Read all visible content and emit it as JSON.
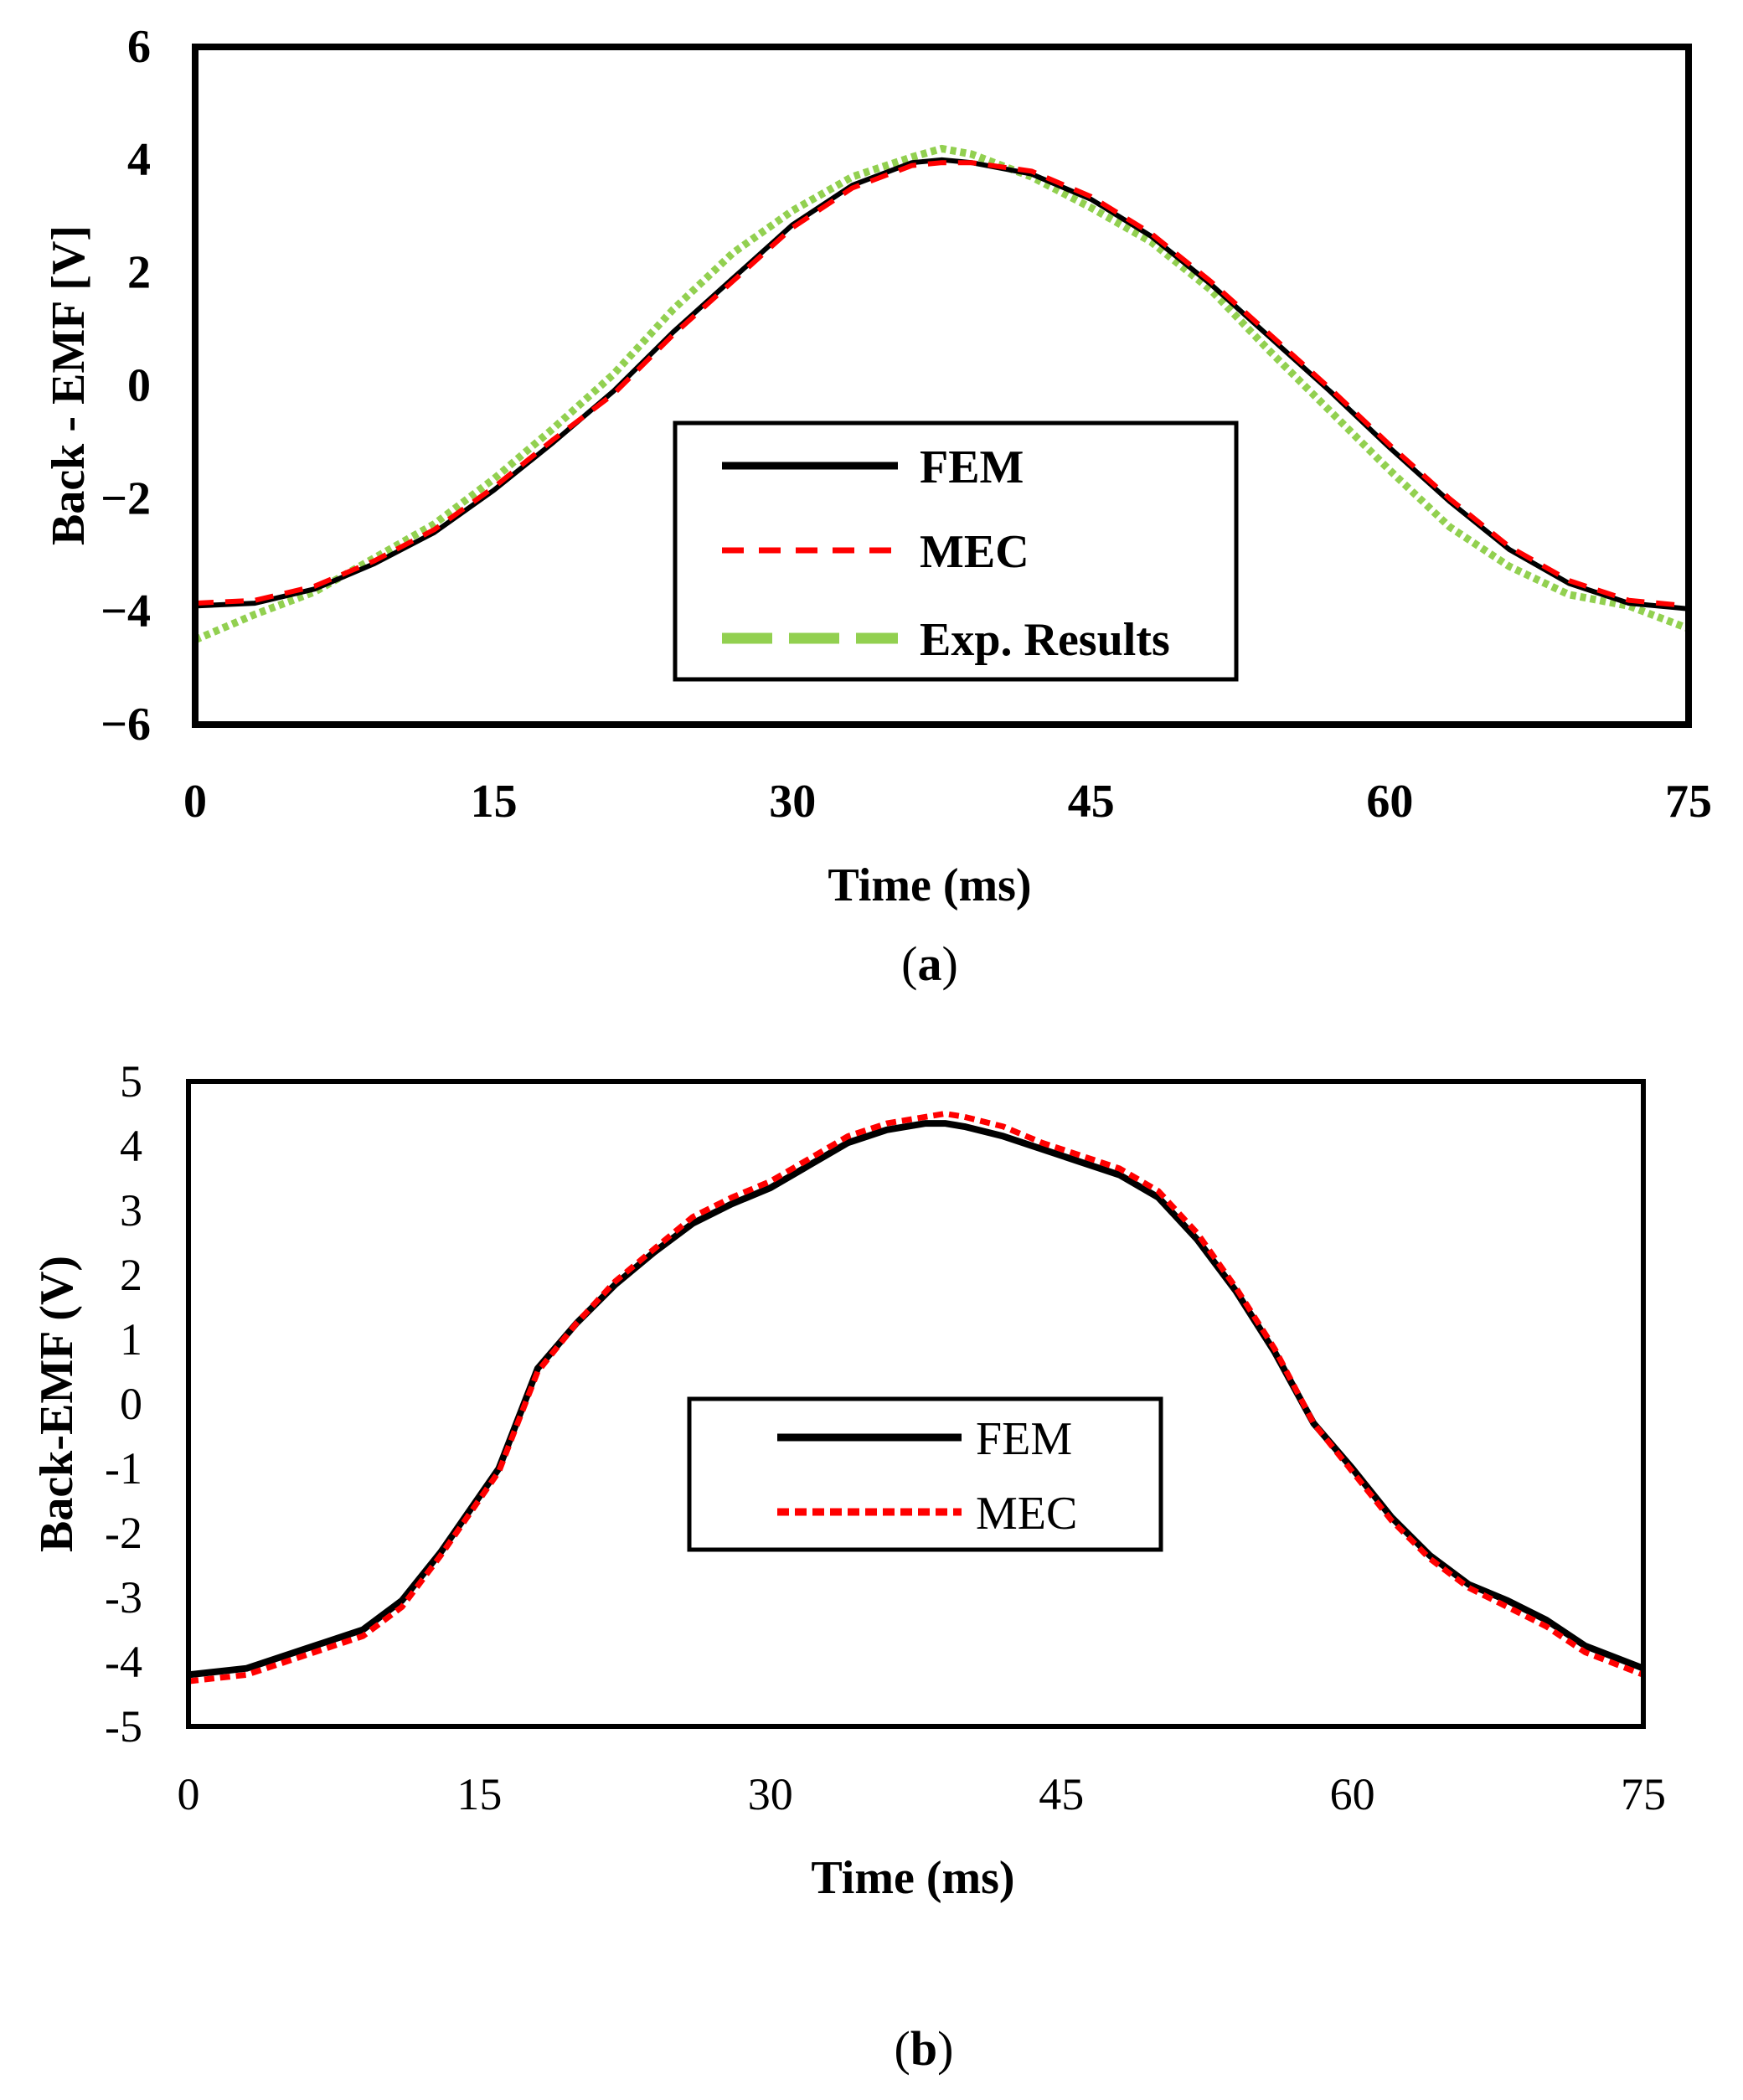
{
  "colors": {
    "fem": "#000000",
    "mec": "#ff0000",
    "exp": "#92d050",
    "frame": "#000000",
    "background": "#ffffff"
  },
  "chart_data": [
    {
      "id": "a",
      "type": "line",
      "caption_letter": "a",
      "xlabel": "Time (ms)",
      "ylabel": "Back - EMF  [V]",
      "xlim": [
        0,
        75
      ],
      "ylim": [
        -6,
        6
      ],
      "xticks": [
        0,
        15,
        30,
        45,
        60,
        75
      ],
      "yticks": [
        6,
        4,
        2,
        0,
        -2,
        -4,
        -6
      ],
      "ytick_labels": [
        "6",
        "4",
        "2",
        "0",
        "−2",
        "−4",
        "−6"
      ],
      "grid": false,
      "legend_position": "center-bottom",
      "series": [
        {
          "name": "FEM",
          "style": "solid",
          "x": [
            0,
            3,
            6,
            9,
            12,
            15,
            18,
            21,
            24,
            27,
            30,
            33,
            36,
            37.5,
            39,
            42,
            45,
            48,
            51,
            54,
            57,
            60,
            63,
            66,
            69,
            72,
            75
          ],
          "y": [
            -3.9,
            -3.85,
            -3.6,
            -3.15,
            -2.6,
            -1.85,
            -1.0,
            -0.1,
            0.95,
            1.9,
            2.85,
            3.55,
            3.95,
            4.0,
            3.95,
            3.75,
            3.3,
            2.65,
            1.8,
            0.85,
            -0.1,
            -1.1,
            -2.05,
            -2.9,
            -3.5,
            -3.85,
            -3.95
          ]
        },
        {
          "name": "MEC",
          "style": "dashed",
          "x": [
            0,
            3,
            6,
            9,
            12,
            15,
            18,
            21,
            24,
            27,
            30,
            33,
            36,
            37.5,
            39,
            42,
            45,
            48,
            51,
            54,
            57,
            60,
            63,
            66,
            69,
            72,
            75
          ],
          "y": [
            -3.85,
            -3.8,
            -3.55,
            -3.1,
            -2.55,
            -1.8,
            -0.95,
            -0.15,
            0.9,
            1.85,
            2.8,
            3.5,
            3.9,
            3.95,
            3.95,
            3.8,
            3.35,
            2.7,
            1.85,
            0.9,
            -0.05,
            -1.05,
            -2.0,
            -2.85,
            -3.45,
            -3.8,
            -3.9
          ]
        },
        {
          "name": "Exp. Results",
          "style": "long-dashed",
          "x": [
            0,
            3,
            6,
            9,
            12,
            15,
            18,
            21,
            24,
            27,
            30,
            33,
            36,
            37.5,
            39,
            42,
            45,
            48,
            51,
            54,
            57,
            60,
            63,
            66,
            69,
            72,
            75
          ],
          "y": [
            -4.5,
            -4.05,
            -3.65,
            -3.05,
            -2.45,
            -1.65,
            -0.75,
            0.2,
            1.35,
            2.35,
            3.1,
            3.7,
            4.05,
            4.2,
            4.1,
            3.7,
            3.15,
            2.55,
            1.7,
            0.6,
            -0.45,
            -1.5,
            -2.5,
            -3.2,
            -3.7,
            -3.9,
            -4.3
          ]
        }
      ]
    },
    {
      "id": "b",
      "type": "line",
      "caption_letter": "b",
      "xlabel": "Time (ms)",
      "ylabel": "Back-EMF (V)",
      "xlim": [
        0,
        75
      ],
      "ylim": [
        -5,
        5
      ],
      "xticks": [
        0,
        15,
        30,
        45,
        60,
        75
      ],
      "yticks": [
        5,
        4,
        3,
        2,
        1,
        0,
        -1,
        -2,
        -3,
        -4,
        -5
      ],
      "ytick_labels": [
        "5",
        "4",
        "3",
        "2",
        "1",
        "0",
        "-1",
        "-2",
        "-3",
        "-4",
        "-5"
      ],
      "grid": false,
      "legend_position": "center",
      "series": [
        {
          "name": "FEM",
          "style": "solid",
          "x": [
            0,
            3,
            6,
            9,
            11,
            13,
            16,
            18,
            20,
            22,
            24,
            26,
            28,
            30,
            32,
            34,
            36,
            38,
            39,
            40,
            42,
            44,
            46,
            48,
            50,
            52,
            54,
            56,
            58,
            60,
            62,
            64,
            66,
            68,
            70,
            72,
            75
          ],
          "y": [
            -4.2,
            -4.1,
            -3.8,
            -3.5,
            -3.05,
            -2.3,
            -1.0,
            0.55,
            1.25,
            1.85,
            2.35,
            2.8,
            3.1,
            3.35,
            3.7,
            4.05,
            4.25,
            4.35,
            4.35,
            4.3,
            4.15,
            3.95,
            3.75,
            3.55,
            3.2,
            2.55,
            1.75,
            0.8,
            -0.3,
            -1.0,
            -1.75,
            -2.35,
            -2.8,
            -3.05,
            -3.35,
            -3.75,
            -4.1
          ]
        },
        {
          "name": "MEC",
          "style": "dashed",
          "x": [
            0,
            3,
            6,
            9,
            11,
            13,
            16,
            18,
            20,
            22,
            24,
            26,
            28,
            30,
            32,
            34,
            36,
            38,
            39,
            40,
            42,
            44,
            46,
            48,
            50,
            52,
            54,
            56,
            58,
            60,
            62,
            64,
            66,
            68,
            70,
            72,
            75
          ],
          "y": [
            -4.3,
            -4.2,
            -3.9,
            -3.6,
            -3.15,
            -2.35,
            -1.05,
            0.5,
            1.25,
            1.9,
            2.4,
            2.9,
            3.2,
            3.45,
            3.8,
            4.15,
            4.35,
            4.45,
            4.5,
            4.45,
            4.3,
            4.05,
            3.85,
            3.65,
            3.3,
            2.65,
            1.8,
            0.85,
            -0.3,
            -1.05,
            -1.8,
            -2.4,
            -2.85,
            -3.15,
            -3.45,
            -3.85,
            -4.2
          ]
        }
      ]
    }
  ]
}
